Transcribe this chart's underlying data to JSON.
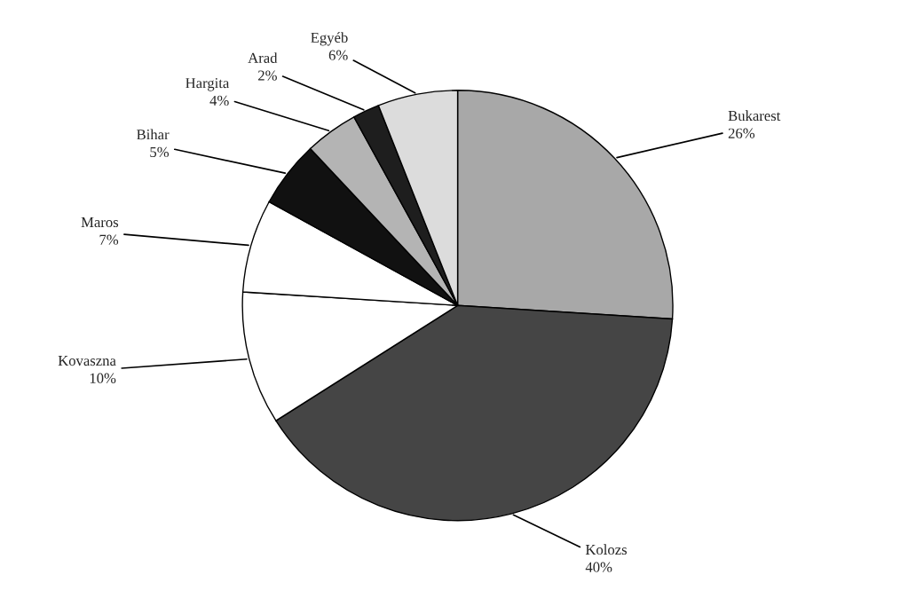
{
  "chart_data": {
    "type": "pie",
    "categories": [
      "Bukarest",
      "Kolozs",
      "Kovaszna",
      "Maros",
      "Bihar",
      "Hargita",
      "Arad",
      "Egyéb"
    ],
    "values": [
      26,
      40,
      10,
      7,
      5,
      4,
      2,
      6
    ],
    "value_labels": [
      "26%",
      "40%",
      "10%",
      "7%",
      "5%",
      "4%",
      "2%",
      "6%"
    ],
    "colors": [
      "#a8a8a8",
      "#454545",
      "#ffffff",
      "#ffffff",
      "#111111",
      "#b4b4b4",
      "#1e1e1e",
      "#dcdcdc"
    ]
  }
}
